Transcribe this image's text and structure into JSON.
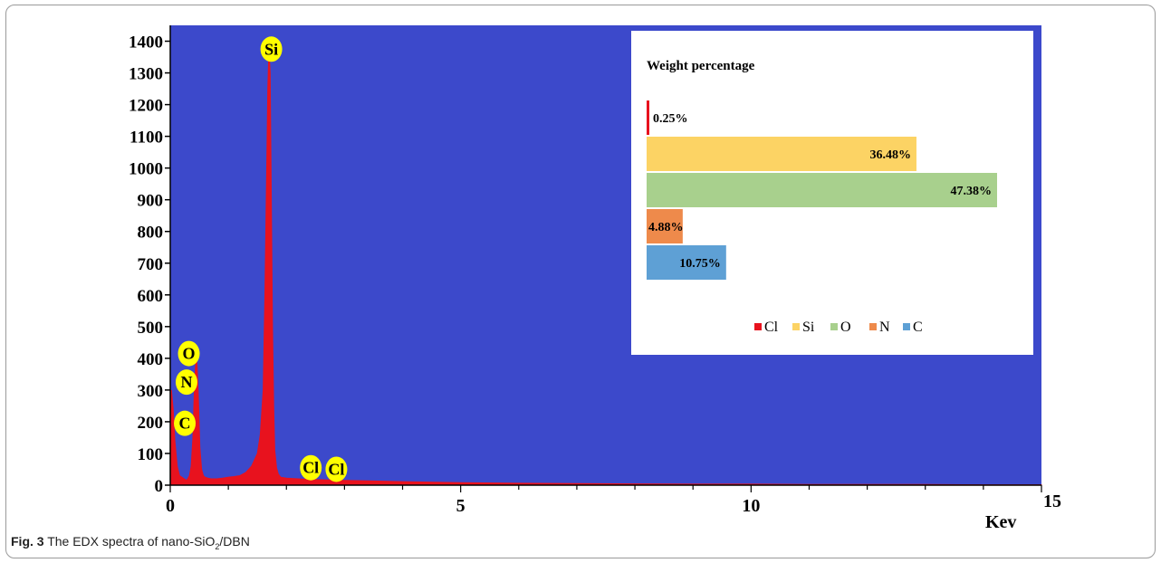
{
  "caption": {
    "label": "Fig. 3",
    "text_before": "The EDX spectra of nano-SiO",
    "subscript": "2",
    "text_after": "/DBN"
  },
  "colors": {
    "plot_bg": "#3c49cb",
    "spectrum": "#e8121e",
    "peak_label_bg": "#ffff00"
  },
  "chart_data": [
    {
      "type": "area",
      "xlabel": "Kev",
      "ylabel": "",
      "xlim": [
        0,
        15
      ],
      "ylim": [
        0,
        1450
      ],
      "x_ticks": [
        "0",
        "5",
        "10",
        "15"
      ],
      "y_ticks": [
        "0",
        "100",
        "200",
        "300",
        "400",
        "500",
        "600",
        "700",
        "800",
        "900",
        "1000",
        "1100",
        "1200",
        "1300",
        "1400"
      ],
      "grid": false,
      "series": [
        {
          "x": [
            0.0,
            0.02,
            0.05,
            0.08,
            0.12,
            0.16,
            0.2,
            0.24,
            0.28,
            0.3,
            0.33,
            0.36,
            0.39,
            0.42,
            0.45,
            0.48,
            0.51,
            0.54,
            0.57,
            0.6,
            0.65,
            0.7,
            0.8,
            0.9,
            1.0,
            1.1,
            1.2,
            1.3,
            1.4,
            1.5,
            1.55,
            1.6,
            1.63,
            1.66,
            1.68,
            1.7,
            1.72,
            1.74,
            1.76,
            1.78,
            1.8,
            1.83,
            1.86,
            1.9,
            2.0,
            2.2,
            2.4,
            2.6,
            2.8,
            3.0,
            3.5,
            4.0,
            5.0,
            6.0,
            7.0,
            8.0,
            9.0,
            10.0,
            11.0,
            12.0,
            13.0,
            14.0,
            15.0
          ],
          "y": [
            0,
            300,
            240,
            140,
            60,
            30,
            25,
            20,
            15,
            20,
            30,
            60,
            150,
            330,
            420,
            300,
            120,
            50,
            30,
            25,
            22,
            20,
            20,
            22,
            25,
            27,
            30,
            40,
            60,
            100,
            160,
            300,
            600,
            1000,
            1250,
            1380,
            1300,
            900,
            500,
            250,
            110,
            55,
            35,
            25,
            22,
            20,
            18,
            17,
            16,
            15,
            13,
            11,
            8,
            6,
            5,
            4,
            3,
            3,
            2,
            2,
            2,
            1,
            1
          ]
        }
      ],
      "peak_labels": [
        {
          "text": "Si",
          "x": 1.74,
          "y": 1375
        },
        {
          "text": "O",
          "x": 0.32,
          "y": 415
        },
        {
          "text": "N",
          "x": 0.28,
          "y": 325
        },
        {
          "text": "C",
          "x": 0.25,
          "y": 195
        },
        {
          "text": "Cl",
          "x": 2.42,
          "y": 55
        },
        {
          "text": "Cl",
          "x": 2.86,
          "y": 50
        }
      ]
    },
    {
      "type": "bar",
      "orientation": "horizontal",
      "title": "Weight percentage",
      "categories": [
        "Cl",
        "Si",
        "O",
        "N",
        "C"
      ],
      "values": [
        0.25,
        36.48,
        47.38,
        4.88,
        10.75
      ],
      "value_labels": [
        "0.25%",
        "36.48%",
        "47.38%",
        "4.88%",
        "10.75%"
      ],
      "colors": [
        "#e8121e",
        "#fcd364",
        "#a8d08d",
        "#ee8a4b",
        "#5ea0d5"
      ],
      "xlim": [
        0,
        47.38
      ],
      "legend": "bottom",
      "grid": false
    }
  ]
}
